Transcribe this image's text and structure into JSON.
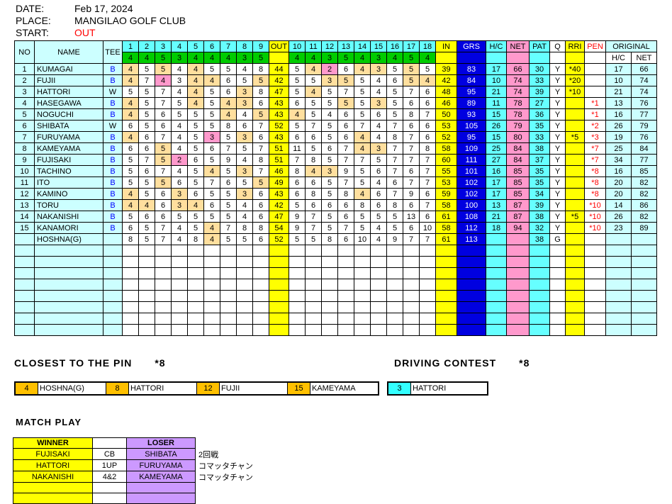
{
  "colors": {
    "cyan": "#66FFFF",
    "light_cyan": "#CCFFFF",
    "green": "#00CC00",
    "yellow": "#FFFF00",
    "blue": "#0000E0",
    "pink": "#FF99CC",
    "par_highlight": "#FFDF9E",
    "birdie_highlight": "#FF99CC",
    "gold": "#FFC000",
    "purple": "#CC99FF",
    "red": "#FF0000",
    "driving_cyan": "#33FFFF"
  },
  "meta": {
    "date_label": "DATE:",
    "date": "Feb 17, 2024",
    "place_label": "PLACE:",
    "place": "MANGILAO GOLF CLUB",
    "start_label": "START:",
    "start": "OUT"
  },
  "table": {
    "columns": {
      "no": "NO",
      "name": "NAME",
      "tee": "TEE",
      "out": "OUT",
      "in": "IN",
      "grs": "GRS",
      "hc": "H/C",
      "net": "NET",
      "pat": "PAT",
      "q": "Q",
      "rri": "RRI",
      "pen": "PEN",
      "original": "ORIGINAL",
      "orig_hc": "H/C",
      "orig_net": "NET"
    },
    "holes_front": [
      "1",
      "2",
      "3",
      "4",
      "5",
      "6",
      "7",
      "8",
      "9"
    ],
    "holes_back": [
      "10",
      "11",
      "12",
      "13",
      "14",
      "15",
      "16",
      "17",
      "18"
    ],
    "par_front": [
      "4",
      "4",
      "5",
      "3",
      "4",
      "4",
      "4",
      "3",
      "5"
    ],
    "par_back": [
      "4",
      "4",
      "3",
      "5",
      "4",
      "3",
      "4",
      "5",
      "4"
    ],
    "empty_rows": 8,
    "rows": [
      {
        "no": "1",
        "name": "KUMAGAI",
        "tee": "B",
        "f": [
          "4",
          "5",
          "5",
          "4",
          "4",
          "5",
          "5",
          "4",
          "8"
        ],
        "fc": [
          "p",
          "",
          "p",
          "",
          "p",
          "",
          "",
          "",
          ""
        ],
        "out": "44",
        "bk": [
          "5",
          "4",
          "2",
          "6",
          "4",
          "3",
          "5",
          "5",
          "5"
        ],
        "bc": [
          "",
          "p",
          "b",
          "",
          "p",
          "p",
          "",
          "p",
          ""
        ],
        "in": "39",
        "grs": "83",
        "hc": "17",
        "net": "66",
        "pat": "30",
        "q": "Y",
        "rri": "*40",
        "pen": "",
        "ohc": "17",
        "onet": "66"
      },
      {
        "no": "2",
        "name": "FUJII",
        "tee": "B",
        "f": [
          "4",
          "7",
          "4",
          "3",
          "4",
          "4",
          "6",
          "5",
          "5"
        ],
        "fc": [
          "p",
          "",
          "b",
          "",
          "p",
          "p",
          "",
          "",
          "p"
        ],
        "out": "42",
        "bk": [
          "5",
          "5",
          "3",
          "5",
          "5",
          "4",
          "6",
          "5",
          "4"
        ],
        "bc": [
          "",
          "",
          "p",
          "p",
          "",
          "",
          "",
          "p",
          "p"
        ],
        "in": "42",
        "grs": "84",
        "hc": "10",
        "net": "74",
        "pat": "33",
        "q": "Y",
        "rri": "*20",
        "pen": "",
        "ohc": "10",
        "onet": "74"
      },
      {
        "no": "3",
        "name": "HATTORI",
        "tee": "W",
        "f": [
          "5",
          "5",
          "7",
          "4",
          "4",
          "5",
          "6",
          "3",
          "8"
        ],
        "fc": [
          "",
          "",
          "",
          "",
          "p",
          "",
          "",
          "p",
          ""
        ],
        "out": "47",
        "bk": [
          "5",
          "4",
          "5",
          "7",
          "5",
          "4",
          "5",
          "7",
          "6"
        ],
        "bc": [
          "",
          "p",
          "",
          "",
          "",
          "",
          "",
          "",
          ""
        ],
        "in": "48",
        "grs": "95",
        "hc": "21",
        "net": "74",
        "pat": "39",
        "q": "Y",
        "rri": "*10",
        "pen": "",
        "ohc": "21",
        "onet": "74"
      },
      {
        "no": "4",
        "name": "HASEGAWA",
        "tee": "B",
        "f": [
          "4",
          "5",
          "7",
          "5",
          "4",
          "5",
          "4",
          "3",
          "6"
        ],
        "fc": [
          "p",
          "",
          "",
          "",
          "p",
          "",
          "p",
          "p",
          ""
        ],
        "out": "43",
        "bk": [
          "6",
          "5",
          "5",
          "5",
          "5",
          "3",
          "5",
          "6",
          "6"
        ],
        "bc": [
          "",
          "",
          "",
          "p",
          "",
          "p",
          "",
          "",
          ""
        ],
        "in": "46",
        "grs": "89",
        "hc": "11",
        "net": "78",
        "pat": "27",
        "q": "Y",
        "rri": "",
        "pen": "*1",
        "ohc": "13",
        "onet": "76"
      },
      {
        "no": "5",
        "name": "NOGUCHI",
        "tee": "B",
        "f": [
          "4",
          "5",
          "6",
          "5",
          "5",
          "5",
          "4",
          "4",
          "5"
        ],
        "fc": [
          "p",
          "",
          "",
          "",
          "",
          "",
          "p",
          "",
          "p"
        ],
        "out": "43",
        "bk": [
          "4",
          "5",
          "4",
          "6",
          "5",
          "6",
          "5",
          "8",
          "7"
        ],
        "bc": [
          "p",
          "",
          "",
          "",
          "",
          "",
          "",
          "",
          ""
        ],
        "in": "50",
        "grs": "93",
        "hc": "15",
        "net": "78",
        "pat": "36",
        "q": "Y",
        "rri": "",
        "pen": "*1",
        "ohc": "16",
        "onet": "77"
      },
      {
        "no": "6",
        "name": "SHIBATA",
        "tee": "W",
        "f": [
          "6",
          "5",
          "6",
          "4",
          "5",
          "5",
          "8",
          "6",
          "7"
        ],
        "fc": [
          "",
          "",
          "",
          "",
          "",
          "",
          "",
          "",
          ""
        ],
        "out": "52",
        "bk": [
          "5",
          "7",
          "5",
          "6",
          "7",
          "4",
          "7",
          "6",
          "6"
        ],
        "bc": [
          "",
          "",
          "",
          "",
          "",
          "",
          "",
          "",
          ""
        ],
        "in": "53",
        "grs": "105",
        "hc": "26",
        "net": "79",
        "pat": "35",
        "q": "Y",
        "rri": "",
        "pen": "*2",
        "ohc": "26",
        "onet": "79"
      },
      {
        "no": "7",
        "name": "FURUYAMA",
        "tee": "B",
        "f": [
          "4",
          "6",
          "7",
          "4",
          "5",
          "3",
          "5",
          "3",
          "6"
        ],
        "fc": [
          "p",
          "",
          "",
          "",
          "",
          "b",
          "",
          "p",
          ""
        ],
        "out": "43",
        "bk": [
          "6",
          "6",
          "5",
          "6",
          "4",
          "4",
          "8",
          "7",
          "6"
        ],
        "bc": [
          "",
          "",
          "",
          "",
          "p",
          "",
          "",
          "",
          ""
        ],
        "in": "52",
        "grs": "95",
        "hc": "15",
        "net": "80",
        "pat": "33",
        "q": "Y",
        "rri": "*5",
        "pen": "*3",
        "ohc": "19",
        "onet": "76"
      },
      {
        "no": "8",
        "name": "KAMEYAMA",
        "tee": "B",
        "f": [
          "6",
          "6",
          "5",
          "4",
          "5",
          "6",
          "7",
          "5",
          "7"
        ],
        "fc": [
          "",
          "",
          "p",
          "",
          "",
          "",
          "",
          "",
          ""
        ],
        "out": "51",
        "bk": [
          "11",
          "5",
          "6",
          "7",
          "4",
          "3",
          "7",
          "7",
          "8"
        ],
        "bc": [
          "",
          "",
          "",
          "",
          "p",
          "p",
          "",
          "",
          ""
        ],
        "in": "58",
        "grs": "109",
        "hc": "25",
        "net": "84",
        "pat": "38",
        "q": "Y",
        "rri": "",
        "pen": "*7",
        "ohc": "25",
        "onet": "84"
      },
      {
        "no": "9",
        "name": "FUJISAKI",
        "tee": "B",
        "f": [
          "5",
          "7",
          "5",
          "2",
          "6",
          "5",
          "9",
          "4",
          "8"
        ],
        "fc": [
          "",
          "",
          "p",
          "b",
          "",
          "",
          "",
          "",
          ""
        ],
        "out": "51",
        "bk": [
          "7",
          "8",
          "5",
          "7",
          "7",
          "5",
          "7",
          "7",
          "7"
        ],
        "bc": [
          "",
          "",
          "",
          "",
          "",
          "",
          "",
          "",
          ""
        ],
        "in": "60",
        "grs": "111",
        "hc": "27",
        "net": "84",
        "pat": "37",
        "q": "Y",
        "rri": "",
        "pen": "*7",
        "ohc": "34",
        "onet": "77"
      },
      {
        "no": "10",
        "name": "TACHINO",
        "tee": "B",
        "f": [
          "5",
          "6",
          "7",
          "4",
          "5",
          "4",
          "5",
          "3",
          "7"
        ],
        "fc": [
          "",
          "",
          "",
          "",
          "",
          "p",
          "",
          "p",
          ""
        ],
        "out": "46",
        "bk": [
          "8",
          "4",
          "3",
          "9",
          "5",
          "6",
          "7",
          "6",
          "7"
        ],
        "bc": [
          "",
          "p",
          "p",
          "",
          "",
          "",
          "",
          "",
          ""
        ],
        "in": "55",
        "grs": "101",
        "hc": "16",
        "net": "85",
        "pat": "35",
        "q": "Y",
        "rri": "",
        "pen": "*8",
        "ohc": "16",
        "onet": "85"
      },
      {
        "no": "11",
        "name": "ITO",
        "tee": "B",
        "f": [
          "5",
          "5",
          "5",
          "6",
          "5",
          "7",
          "6",
          "5",
          "5"
        ],
        "fc": [
          "",
          "",
          "p",
          "",
          "",
          "",
          "",
          "",
          "p"
        ],
        "out": "49",
        "bk": [
          "6",
          "6",
          "5",
          "7",
          "5",
          "4",
          "6",
          "7",
          "7"
        ],
        "bc": [
          "",
          "",
          "",
          "",
          "",
          "",
          "",
          "",
          ""
        ],
        "in": "53",
        "grs": "102",
        "hc": "17",
        "net": "85",
        "pat": "35",
        "q": "Y",
        "rri": "",
        "pen": "*8",
        "ohc": "20",
        "onet": "82"
      },
      {
        "no": "12",
        "name": "KAMINO",
        "tee": "B",
        "f": [
          "4",
          "5",
          "6",
          "3",
          "6",
          "5",
          "5",
          "3",
          "6"
        ],
        "fc": [
          "p",
          "",
          "",
          "p",
          "",
          "",
          "",
          "p",
          ""
        ],
        "out": "43",
        "bk": [
          "6",
          "8",
          "5",
          "8",
          "4",
          "6",
          "7",
          "9",
          "6"
        ],
        "bc": [
          "",
          "",
          "",
          "",
          "p",
          "",
          "",
          "",
          ""
        ],
        "in": "59",
        "grs": "102",
        "hc": "17",
        "net": "85",
        "pat": "34",
        "q": "Y",
        "rri": "",
        "pen": "*8",
        "ohc": "20",
        "onet": "82"
      },
      {
        "no": "13",
        "name": "TORU",
        "tee": "B",
        "f": [
          "4",
          "4",
          "6",
          "3",
          "4",
          "6",
          "5",
          "4",
          "6"
        ],
        "fc": [
          "p",
          "p",
          "",
          "p",
          "p",
          "",
          "",
          "",
          ""
        ],
        "out": "42",
        "bk": [
          "5",
          "6",
          "6",
          "6",
          "8",
          "6",
          "8",
          "6",
          "7"
        ],
        "bc": [
          "",
          "",
          "",
          "",
          "",
          "",
          "",
          "",
          ""
        ],
        "in": "58",
        "grs": "100",
        "hc": "13",
        "net": "87",
        "pat": "39",
        "q": "Y",
        "rri": "",
        "pen": "*10",
        "ohc": "14",
        "onet": "86"
      },
      {
        "no": "14",
        "name": "NAKANISHI",
        "tee": "B",
        "f": [
          "5",
          "6",
          "6",
          "5",
          "5",
          "5",
          "5",
          "4",
          "6"
        ],
        "fc": [
          "",
          "",
          "",
          "",
          "",
          "",
          "",
          "",
          ""
        ],
        "out": "47",
        "bk": [
          "9",
          "7",
          "5",
          "6",
          "5",
          "5",
          "5",
          "13",
          "6"
        ],
        "bc": [
          "",
          "",
          "",
          "",
          "",
          "",
          "",
          "",
          ""
        ],
        "in": "61",
        "grs": "108",
        "hc": "21",
        "net": "87",
        "pat": "38",
        "q": "Y",
        "rri": "*5",
        "pen": "*10",
        "ohc": "26",
        "onet": "82"
      },
      {
        "no": "15",
        "name": "KANAMORI",
        "tee": "B",
        "f": [
          "6",
          "5",
          "7",
          "4",
          "5",
          "4",
          "7",
          "8",
          "8"
        ],
        "fc": [
          "",
          "",
          "",
          "",
          "",
          "p",
          "",
          "",
          ""
        ],
        "out": "54",
        "bk": [
          "9",
          "7",
          "5",
          "7",
          "5",
          "4",
          "5",
          "6",
          "10"
        ],
        "bc": [
          "",
          "",
          "",
          "",
          "",
          "",
          "",
          "",
          ""
        ],
        "in": "58",
        "grs": "112",
        "hc": "18",
        "net": "94",
        "pat": "32",
        "q": "Y",
        "rri": "",
        "pen": "*10",
        "ohc": "23",
        "onet": "89"
      },
      {
        "no": "",
        "name": "HOSHNA(G)",
        "tee": "",
        "f": [
          "8",
          "5",
          "7",
          "4",
          "8",
          "4",
          "5",
          "5",
          "6"
        ],
        "fc": [
          "",
          "",
          "",
          "",
          "",
          "p",
          "",
          "",
          ""
        ],
        "out": "52",
        "bk": [
          "5",
          "5",
          "8",
          "6",
          "10",
          "4",
          "9",
          "7",
          "7"
        ],
        "bc": [
          "",
          "",
          "",
          "",
          "",
          "",
          "",
          "",
          ""
        ],
        "in": "61",
        "grs": "113",
        "hc": "",
        "net": "",
        "pat": "38",
        "q": "G",
        "rri": "",
        "pen": "",
        "ohc": "",
        "onet": ""
      }
    ]
  },
  "closest_to_pin": {
    "title": "CLOSEST TO THE PIN",
    "star": "*8",
    "entries": [
      {
        "hole": "4",
        "name": "HOSHNA(G)"
      },
      {
        "hole": "8",
        "name": "HATTORI"
      },
      {
        "hole": "12",
        "name": "FUJII"
      },
      {
        "hole": "15",
        "name": "KAMEYAMA"
      }
    ]
  },
  "driving_contest": {
    "title": "DRIVING CONTEST",
    "star": "*8",
    "entries": [
      {
        "hole": "3",
        "name": "HATTORI"
      }
    ]
  },
  "match_play": {
    "title": "MATCH PLAY",
    "winner_label": "WINNER",
    "loser_label": "LOSER",
    "rows": [
      {
        "winner": "FUJISAKI",
        "result": "CB",
        "loser": "SHIBATA",
        "note": "2回戦"
      },
      {
        "winner": "HATTORI",
        "result": "1UP",
        "loser": "FURUYAMA",
        "note": "コマッタチャン"
      },
      {
        "winner": "NAKANISHI",
        "result": "4&2",
        "loser": "KAMEYAMA",
        "note": "コマッタチャン"
      },
      {
        "winner": "",
        "result": "",
        "loser": "",
        "note": ""
      },
      {
        "winner": "",
        "result": "",
        "loser": "",
        "note": ""
      }
    ]
  }
}
